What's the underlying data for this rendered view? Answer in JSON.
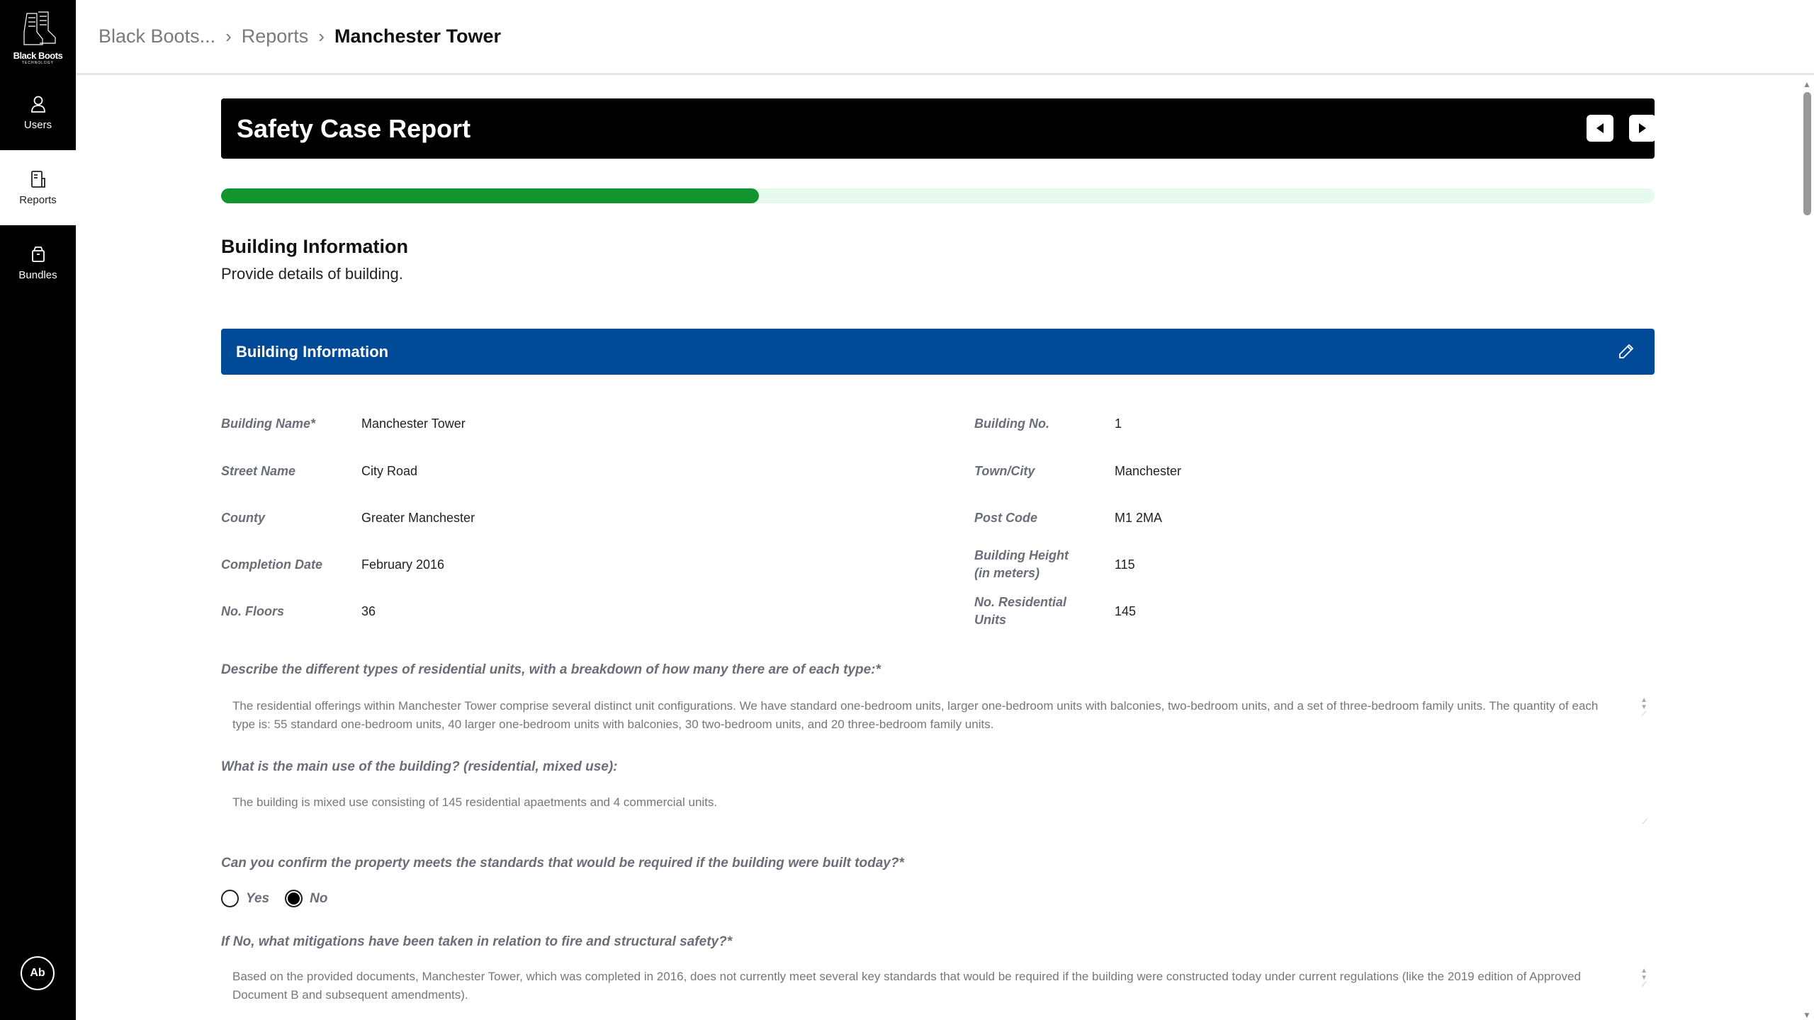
{
  "sidebar": {
    "logo_text": "Black Boots",
    "logo_sub": "TECHNOLOGY",
    "items": [
      {
        "label": "Users",
        "icon": "user-icon"
      },
      {
        "label": "Reports",
        "icon": "report-icon",
        "active": true
      },
      {
        "label": "Bundles",
        "icon": "box-icon"
      }
    ],
    "avatar": "Ab"
  },
  "breadcrumb": [
    "Black Boots...",
    "Reports",
    "Manchester Tower"
  ],
  "report": {
    "title": "Safety Case Report",
    "progress_percent": 37.5,
    "progress_color": "#12952f"
  },
  "section": {
    "title": "Building Information",
    "subtitle": "Provide details of building.",
    "panel_title": "Building Information",
    "panel_color": "#004a97"
  },
  "fields": [
    {
      "label": "Building Name*",
      "value": "Manchester Tower"
    },
    {
      "label": "Building No.",
      "value": "1"
    },
    {
      "label": "Street Name",
      "value": "City Road"
    },
    {
      "label": "Town/City",
      "value": "Manchester"
    },
    {
      "label": "County",
      "value": "Greater Manchester"
    },
    {
      "label": "Post Code",
      "value": "M1 2MA"
    },
    {
      "label": "Completion Date",
      "value": "February 2016"
    },
    {
      "label": "Building Height (in meters)",
      "value": "115"
    },
    {
      "label": "No. Floors",
      "value": "36"
    },
    {
      "label": "No. Residential Units",
      "value": "145"
    }
  ],
  "questions": [
    {
      "label": "Describe the different types of residential units, with a breakdown of how many there are of each type:*",
      "answer": "The residential offerings within Manchester Tower comprise several distinct unit configurations. We have standard one-bedroom units, larger one-bedroom units with balconies, two-bedroom units, and a set of three-bedroom family units. The quantity of each type is: 55 standard one-bedroom units, 40 larger one-bedroom units with balconies, 30 two-bedroom units, and 20 three-bedroom family units."
    },
    {
      "label": "What is the main use of the building? (residential, mixed use):",
      "answer": "The building is mixed use consisting of 145 residential apaetments and 4 commercial units."
    },
    {
      "label": "Can you confirm the property meets the standards that would be required if the building were built today?*",
      "options": [
        "Yes",
        "No"
      ],
      "selected": "No"
    },
    {
      "label": "If No, what mitigations have been taken in relation to fire and structural safety?*",
      "answer": "Based on the provided documents, Manchester Tower, which was completed in 2016, does not currently meet several key standards that would be required if the building were constructed today under current regulations (like the 2019 edition of Approved Document B and subsequent amendments)."
    }
  ]
}
